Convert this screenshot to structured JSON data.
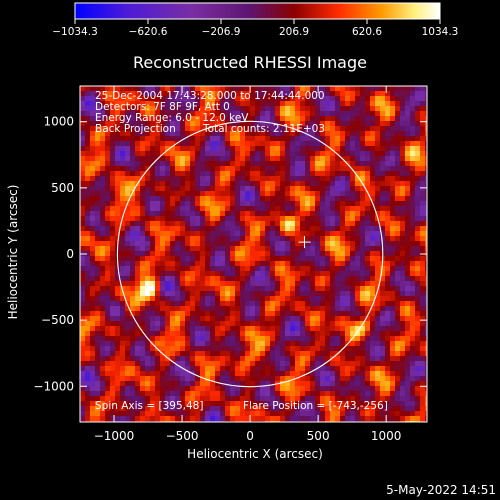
{
  "chart_data": {
    "type": "heatmap",
    "title": "Reconstructed RHESSI Image",
    "xlabel": "Heliocentric X (arcsec)",
    "ylabel": "Heliocentric Y (arcsec)",
    "xlim": [
      -1250,
      1300
    ],
    "ylim": [
      -1270,
      1270
    ],
    "xticks": [
      -1000,
      -500,
      0,
      500,
      1000
    ],
    "xtick_labels": [
      "−1000",
      "−500",
      "0",
      "500",
      "1000"
    ],
    "yticks": [
      -1000,
      -500,
      0,
      500,
      1000
    ],
    "ytick_labels": [
      "−1000",
      "−500",
      "0",
      "500",
      "1000"
    ],
    "colorbar": {
      "min": -1034.3,
      "max": 1034.3,
      "ticks": [
        -1034.3,
        -620.6,
        -206.9,
        206.9,
        620.6,
        1034.3
      ],
      "tick_labels": [
        "−1034.3",
        "−620.6",
        "−206.9",
        "206.9",
        "620.6",
        "1034.3"
      ],
      "colors": [
        "#0000ff",
        "#4c1bd8",
        "#7a2ea4",
        "#5e1470",
        "#8b0000",
        "#ff2a00",
        "#ff9a00",
        "#fff080",
        "#ffffff"
      ]
    },
    "solar_limb": {
      "center": [
        0,
        0
      ],
      "radius": 975
    },
    "sun_center_marker": [
      400,
      90
    ],
    "annotations": {
      "line1": "25-Dec-2004 17:43:28.000 to 17:44:44.000",
      "line2": "Detectors: 7F 8F 9F, Att 0",
      "line3": "Energy Range: 6.0 - 12.0 keV",
      "line4_left": "Back Projection",
      "line4_right": "Total counts: 2.11E+03",
      "spin_axis": "Spin Axis = [395,48]",
      "flare_position": "Flare Position = [-743,-256]"
    },
    "bright_sources": [
      {
        "x": -743,
        "y": -256,
        "value": 1034.3
      },
      {
        "x": 280,
        "y": 240,
        "value": 780
      },
      {
        "x": -30,
        "y": -780,
        "value": 650
      },
      {
        "x": -1000,
        "y": 480,
        "value": 600
      },
      {
        "x": 840,
        "y": -560,
        "value": 620
      }
    ]
  },
  "footer": {
    "date": "5-May-2022 14:51"
  }
}
